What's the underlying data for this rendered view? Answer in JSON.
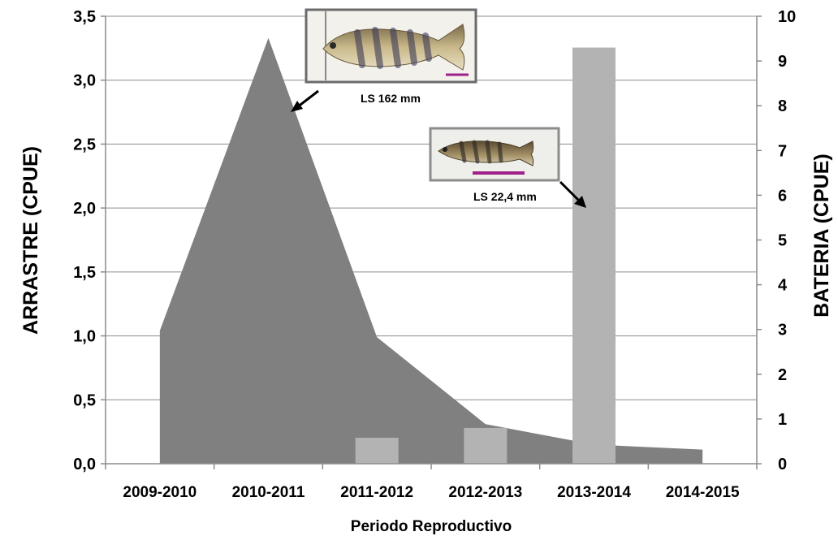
{
  "chart_data": {
    "type": "area",
    "categories": [
      "2009-2010",
      "2010-2011",
      "2011-2012",
      "2012-2013",
      "2013-2014",
      "2014-2015"
    ],
    "xlabel": "Periodo Reproductivo",
    "ylabel_left": "ARRASTRE (CPUE)",
    "ylabel_right": "BATERIA (CPUE)",
    "ylim_left": [
      0,
      3.5
    ],
    "ylim_right": [
      0,
      10
    ],
    "yticks_left": [
      "0,0",
      "0,5",
      "1,0",
      "1,5",
      "2,0",
      "2,5",
      "3,0",
      "3,5"
    ],
    "yticks_right": [
      "0",
      "1",
      "2",
      "3",
      "4",
      "5",
      "6",
      "7",
      "8",
      "9",
      "10"
    ],
    "grid": true,
    "series": [
      {
        "name": "",
        "kind": "area",
        "axis": "left",
        "color": "#808080",
        "points": [
          {
            "x": "2009-2010",
            "y": 1.04
          },
          {
            "x": "2010-2011",
            "y": 3.33
          },
          {
            "x": "2011-2012",
            "y": 0.99
          },
          {
            "x": "2012-2013",
            "y": 0.31
          },
          {
            "x": "2013-2014",
            "y": 0.15
          },
          {
            "x": "2014-2015",
            "y": 0.11
          }
        ]
      },
      {
        "name": "",
        "kind": "bar",
        "axis": "right",
        "color": "#b3b3b3",
        "values": [
          0,
          0,
          0.58,
          0.8,
          9.3,
          0
        ]
      }
    ],
    "annotations": [
      {
        "text": "LS 162 mm",
        "target": "2010-2011"
      },
      {
        "text": "LS 22,4 mm",
        "target": "2013-2014"
      }
    ]
  }
}
